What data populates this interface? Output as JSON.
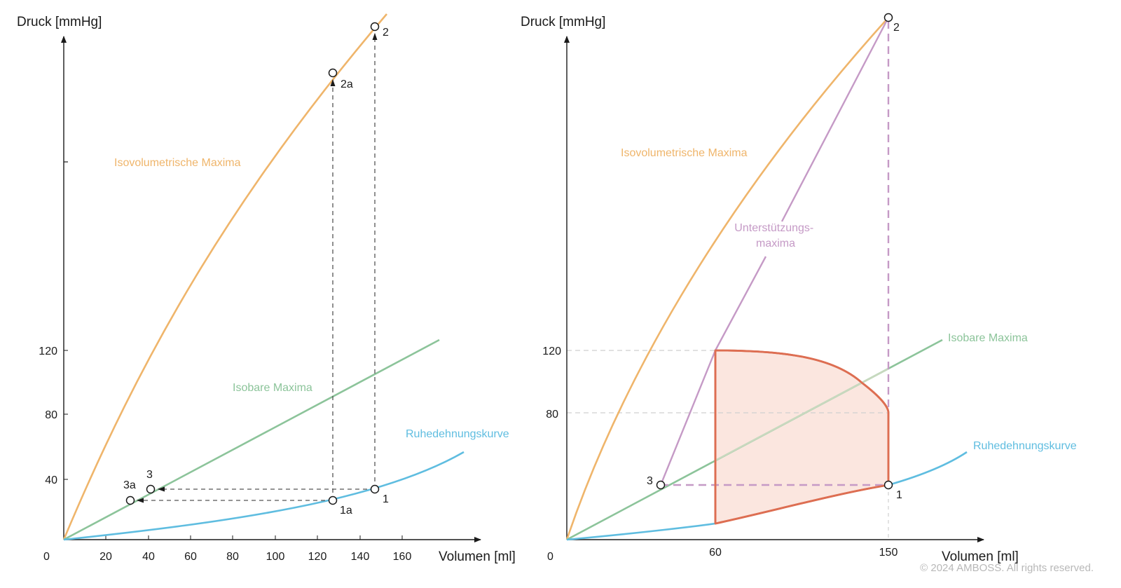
{
  "colors": {
    "isovolumetric": "#efb56b",
    "isobar": "#8cc49a",
    "rest": "#5fbde0",
    "support": "#c59ac6",
    "work": "#dd6e52",
    "work_fill": "#fbe6df",
    "axis": "#1a1a1a",
    "guide": "#555555"
  },
  "copyright": "© 2024 AMBOSS. All rights reserved.",
  "chart_data": [
    {
      "type": "line",
      "title": "",
      "xlabel": "Volumen [ml]",
      "ylabel": "Druck [mmHg]",
      "x_origin_label": "0",
      "x_ticks": [
        "20",
        "40",
        "60",
        "80",
        "100",
        "120",
        "140",
        "160"
      ],
      "y_ticks": [
        "40",
        "80",
        "120"
      ],
      "xlim": [
        0,
        195
      ],
      "ylim": [
        0,
        320
      ],
      "series": [
        {
          "name": "Isovolumetrische Maxima",
          "color_key": "isovolumetric",
          "x": [
            0,
            10,
            20,
            30,
            40,
            50,
            60,
            70,
            80,
            90,
            100,
            110,
            120,
            130,
            140,
            150
          ],
          "y": [
            0,
            52,
            92,
            124,
            150,
            172,
            192,
            210,
            228,
            245,
            260,
            276,
            292,
            308,
            322,
            336
          ]
        },
        {
          "name": "Isobare Maxima",
          "color_key": "isobar",
          "x": [
            0,
            30,
            60,
            90,
            120,
            150,
            180
          ],
          "y": [
            0,
            26,
            52,
            78,
            103,
            127,
            151
          ]
        },
        {
          "name": "Ruhedehnungskurve",
          "color_key": "rest",
          "x": [
            0,
            20,
            40,
            60,
            80,
            100,
            120,
            140,
            160,
            190
          ],
          "y": [
            0,
            2,
            4,
            7,
            10,
            14,
            19,
            26,
            35,
            52
          ]
        }
      ],
      "points": [
        {
          "label": "1",
          "x": 148,
          "y": 31
        },
        {
          "label": "2",
          "x": 148,
          "y": 333
        },
        {
          "label": "3",
          "x": 41,
          "y": 31
        },
        {
          "label": "1a",
          "x": 128,
          "y": 24
        },
        {
          "label": "2a",
          "x": 128,
          "y": 301
        },
        {
          "label": "3a",
          "x": 31,
          "y": 24
        }
      ]
    },
    {
      "type": "line",
      "title": "",
      "xlabel": "Volumen [ml]",
      "ylabel": "Druck [mmHg]",
      "x_origin_label": "0",
      "x_ticks": [
        "60",
        "150"
      ],
      "y_ticks": [
        "120",
        "80"
      ],
      "xlim": [
        0,
        200
      ],
      "ylim": [
        0,
        330
      ],
      "series": [
        {
          "name": "Isovolumetrische Maxima",
          "color_key": "isovolumetric",
          "x": [
            0,
            15,
            30,
            45,
            60,
            75,
            90,
            105,
            120,
            135,
            150
          ],
          "y": [
            0,
            58,
            100,
            133,
            163,
            189,
            213,
            238,
            262,
            285,
            308
          ]
        },
        {
          "name": "Isobare Maxima",
          "color_key": "isobar",
          "x": [
            0,
            30,
            60,
            90,
            120,
            150,
            180
          ],
          "y": [
            0,
            36,
            72,
            108,
            144,
            180,
            216
          ]
        },
        {
          "name": "Ruhedehnungskurve",
          "color_key": "rest",
          "x": [
            0,
            30,
            60,
            90,
            120,
            150,
            175
          ],
          "y": [
            0,
            4,
            9,
            17,
            25,
            34,
            46
          ]
        },
        {
          "name": "Unterstützungs-maxima",
          "color_key": "support",
          "x": [
            41,
            60,
            150
          ],
          "y": [
            34,
            120,
            330
          ]
        }
      ],
      "work_area": {
        "label": "",
        "outline": [
          [
            60,
            10
          ],
          [
            60,
            120
          ],
          [
            80,
            119
          ],
          [
            100,
            116
          ],
          [
            115,
            111
          ],
          [
            130,
            103
          ],
          [
            140,
            95
          ],
          [
            147,
            86
          ],
          [
            150,
            80
          ],
          [
            150,
            34
          ],
          [
            130,
            26
          ],
          [
            100,
            19
          ],
          [
            80,
            14
          ],
          [
            60,
            10
          ]
        ]
      },
      "points": [
        {
          "label": "1",
          "x": 150,
          "y": 34
        },
        {
          "label": "2",
          "x": 150,
          "y": 330
        },
        {
          "label": "3",
          "x": 41,
          "y": 34
        }
      ]
    }
  ]
}
